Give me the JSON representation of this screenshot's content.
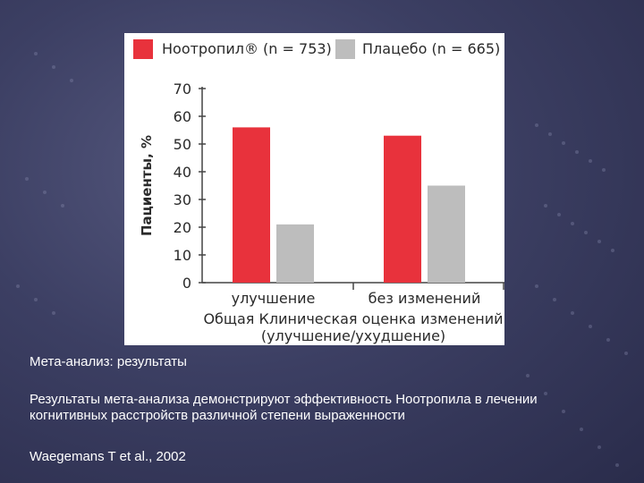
{
  "slide": {
    "title": "Мета-анализ: результаты",
    "body": "Результаты мета-анализа демонстрируют эффективность Ноотропила в лечении когнитивных расстройств различной степени выраженности",
    "citation": "Waegemans T et al., 2002"
  },
  "colors": {
    "nootropil": "#e8323c",
    "placebo": "#bdbdbd",
    "axis": "#444444",
    "text": "#2a2a2a"
  },
  "chart_data": {
    "type": "bar",
    "categories": [
      "улучшение",
      "без изменений"
    ],
    "series": [
      {
        "name": "Ноотропил® (n = 753)",
        "values": [
          56,
          53
        ]
      },
      {
        "name": "Плацебо (n = 665)",
        "values": [
          21,
          35
        ]
      }
    ],
    "ylabel": "Пациенты, %",
    "xlabel_line1": "Общая Клиническая оценка изменений",
    "xlabel_line2": "(улучшение/ухудшение)",
    "ylim": [
      0,
      70
    ],
    "yticks": [
      0,
      10,
      20,
      30,
      40,
      50,
      60,
      70
    ],
    "legend_position": "top"
  }
}
